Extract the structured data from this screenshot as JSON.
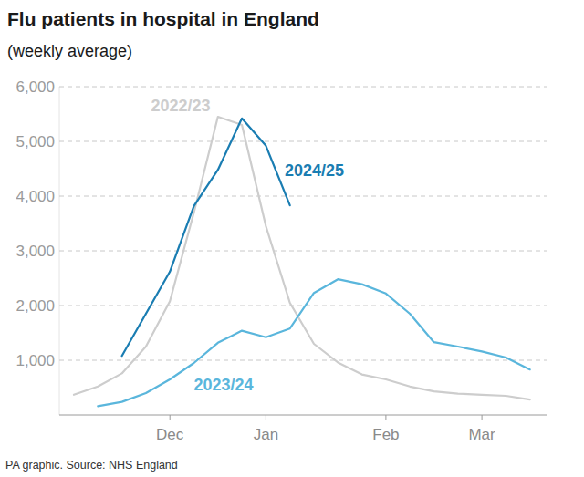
{
  "chart_data": {
    "type": "line",
    "title": "Flu patients in hospital in England",
    "subtitle": "(weekly average)",
    "source": "PA graphic. Source: NHS England",
    "categories": [
      null,
      null,
      null,
      null,
      "Dec",
      null,
      null,
      null,
      "Jan",
      null,
      null,
      null,
      null,
      "Feb",
      null,
      null,
      null,
      "Mar",
      null,
      null
    ],
    "series": [
      {
        "name": "2022/23",
        "color": "#cdcdcd",
        "values": [
          370,
          520,
          760,
          1250,
          2080,
          3700,
          5450,
          5300,
          3450,
          2050,
          1300,
          960,
          740,
          650,
          520,
          430,
          390,
          370,
          350,
          280
        ]
      },
      {
        "name": "2023/24",
        "color": "#5ab6dc",
        "values": [
          null,
          160,
          240,
          400,
          650,
          950,
          1320,
          1540,
          1420,
          1580,
          2230,
          2480,
          2390,
          2220,
          1850,
          1330,
          1250,
          1160,
          1050,
          830
        ]
      },
      {
        "name": "2024/25",
        "color": "#1a7db2",
        "values": [
          null,
          null,
          1080,
          1850,
          2620,
          3820,
          4480,
          5420,
          4920,
          3830,
          null,
          null,
          null,
          null,
          null,
          null,
          null,
          null,
          null,
          null
        ]
      }
    ],
    "ylim": [
      0,
      6000
    ],
    "yticks": [
      {
        "value": 1000,
        "label": "1,000"
      },
      {
        "value": 2000,
        "label": "2,000"
      },
      {
        "value": 3000,
        "label": "3,000"
      },
      {
        "value": 4000,
        "label": "4,000"
      },
      {
        "value": 5000,
        "label": "5,000"
      },
      {
        "value": 6000,
        "label": "6,000"
      }
    ],
    "grid": true
  }
}
